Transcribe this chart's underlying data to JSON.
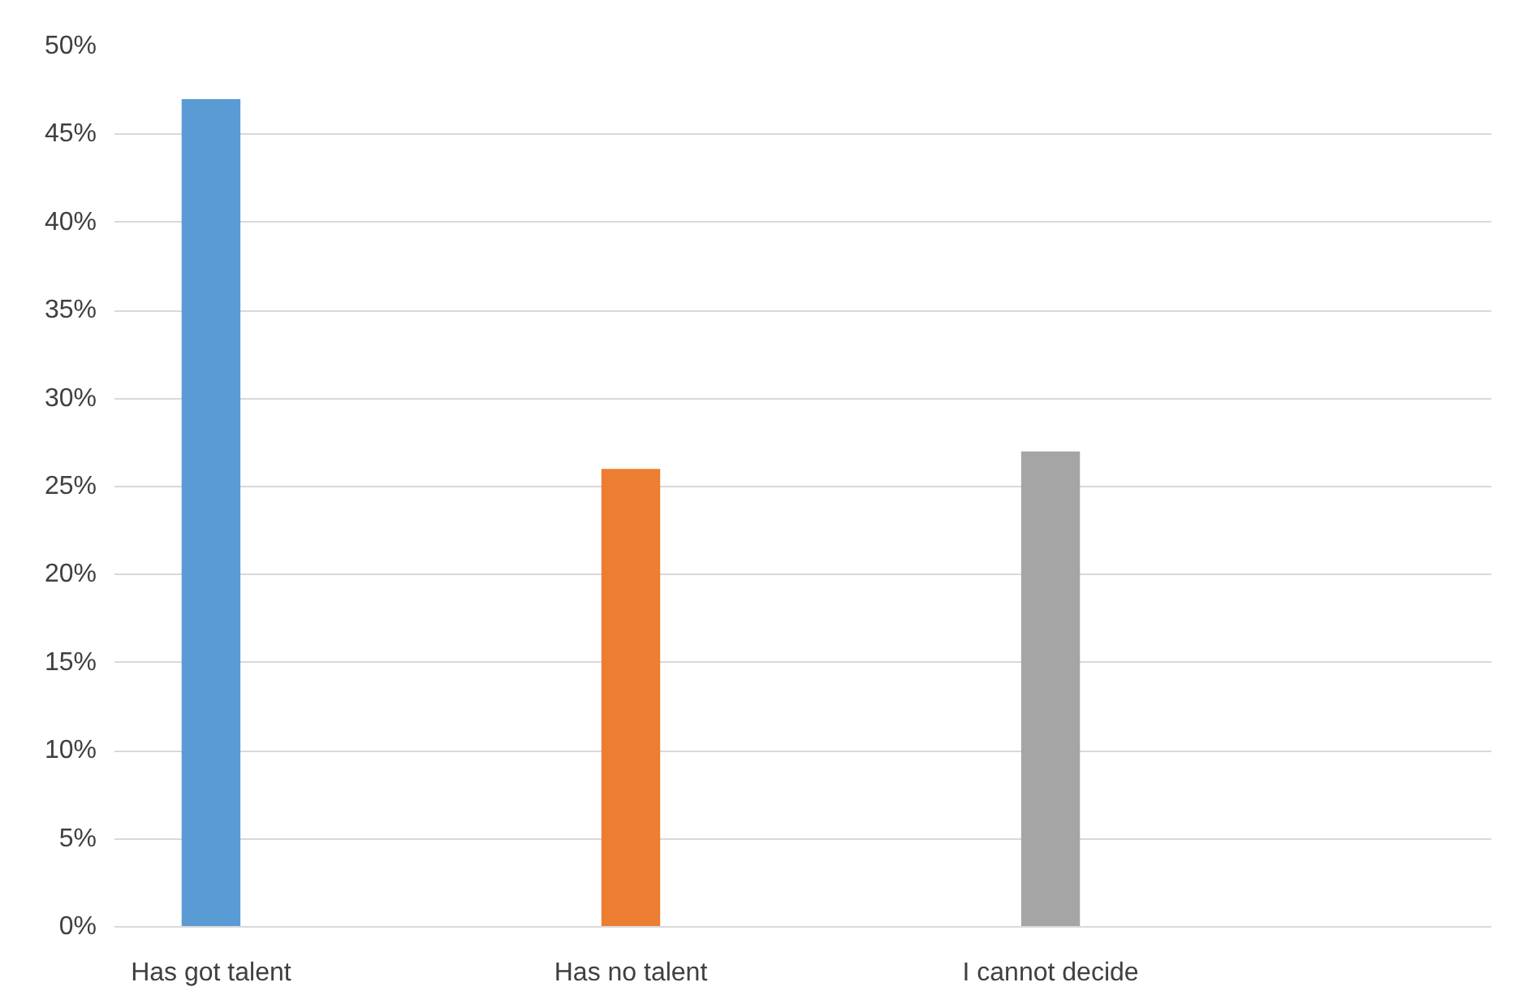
{
  "chart_data": {
    "type": "bar",
    "categories": [
      "Has got talent",
      "Has no talent",
      "I cannot decide"
    ],
    "values": [
      47,
      26,
      27
    ],
    "colors": [
      "#5b9bd5",
      "#ed7d31",
      "#a5a5a5"
    ],
    "ylim": [
      0,
      50
    ],
    "yticks": [
      {
        "value": 0,
        "label": "0%"
      },
      {
        "value": 5,
        "label": "5%"
      },
      {
        "value": 10,
        "label": "10%"
      },
      {
        "value": 15,
        "label": "15%"
      },
      {
        "value": 20,
        "label": "20%"
      },
      {
        "value": 25,
        "label": "25%"
      },
      {
        "value": 30,
        "label": "30%"
      },
      {
        "value": 35,
        "label": "35%"
      },
      {
        "value": 40,
        "label": "40%"
      },
      {
        "value": 45,
        "label": "45%"
      },
      {
        "value": 50,
        "label": "50%"
      }
    ],
    "grid": "y"
  }
}
